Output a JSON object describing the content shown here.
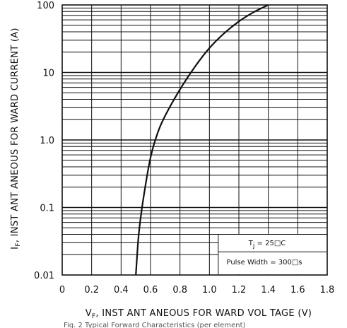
{
  "chart_data": {
    "type": "line",
    "xlabel": {
      "main": "V",
      "sub": "F",
      "rest": ", INST ANT ANEOUS   FOR WARD  VOL TAGE  (V)"
    },
    "ylabel": {
      "main": "I",
      "sub": "F",
      "rest": ", INST ANT ANEOUS    FOR WARD  CURRENT    (A)"
    },
    "x_ticks": [
      "0",
      "0.2",
      "0.4",
      "0.6",
      "0.8",
      "1.0",
      "1.2",
      "1.4",
      "1.6",
      "1.8"
    ],
    "y_ticks": [
      "100",
      "10",
      "1.0",
      "0.1",
      "0.01"
    ],
    "xlim": [
      0,
      1.8
    ],
    "ylim": [
      0.01,
      100
    ],
    "yscale": "log",
    "grid": true,
    "series": [
      {
        "color": "#111111",
        "x": [
          0.5,
          0.52,
          0.55,
          0.6,
          0.65,
          0.7,
          0.8,
          0.9,
          1.0,
          1.1,
          1.2,
          1.3,
          1.4
        ],
        "y": [
          0.01,
          0.04,
          0.13,
          0.55,
          1.3,
          2.3,
          5.6,
          12,
          23,
          38,
          57,
          78,
          100
        ]
      }
    ],
    "annotations": [
      {
        "main": "T",
        "sub": "j",
        "rest": " = 25□C"
      },
      {
        "text": "Pulse  Width = 300□s"
      }
    ],
    "caption": "Fig. 2  Typical Forward Characteristics (per element)"
  }
}
